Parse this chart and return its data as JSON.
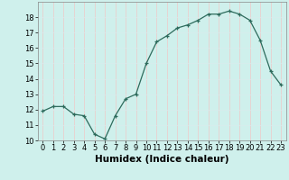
{
  "x": [
    0,
    1,
    2,
    3,
    4,
    5,
    6,
    7,
    8,
    9,
    10,
    11,
    12,
    13,
    14,
    15,
    16,
    17,
    18,
    19,
    20,
    21,
    22,
    23
  ],
  "y": [
    11.9,
    12.2,
    12.2,
    11.7,
    11.6,
    10.4,
    10.1,
    11.6,
    12.7,
    13.0,
    15.0,
    16.4,
    16.8,
    17.3,
    17.5,
    17.8,
    18.2,
    18.2,
    18.4,
    18.2,
    17.8,
    16.5,
    14.5,
    13.6
  ],
  "xlabel": "Humidex (Indice chaleur)",
  "xlim": [
    -0.5,
    23.5
  ],
  "ylim": [
    10,
    19
  ],
  "yticks": [
    10,
    11,
    12,
    13,
    14,
    15,
    16,
    17,
    18
  ],
  "xticks": [
    0,
    1,
    2,
    3,
    4,
    5,
    6,
    7,
    8,
    9,
    10,
    11,
    12,
    13,
    14,
    15,
    16,
    17,
    18,
    19,
    20,
    21,
    22,
    23
  ],
  "line_color": "#2d6b5c",
  "bg_color": "#cff0ec",
  "grid_major_color": "#f0c8c8",
  "grid_minor_color": "#d8ecec",
  "label_fontsize": 7.5,
  "tick_fontsize": 6.0
}
